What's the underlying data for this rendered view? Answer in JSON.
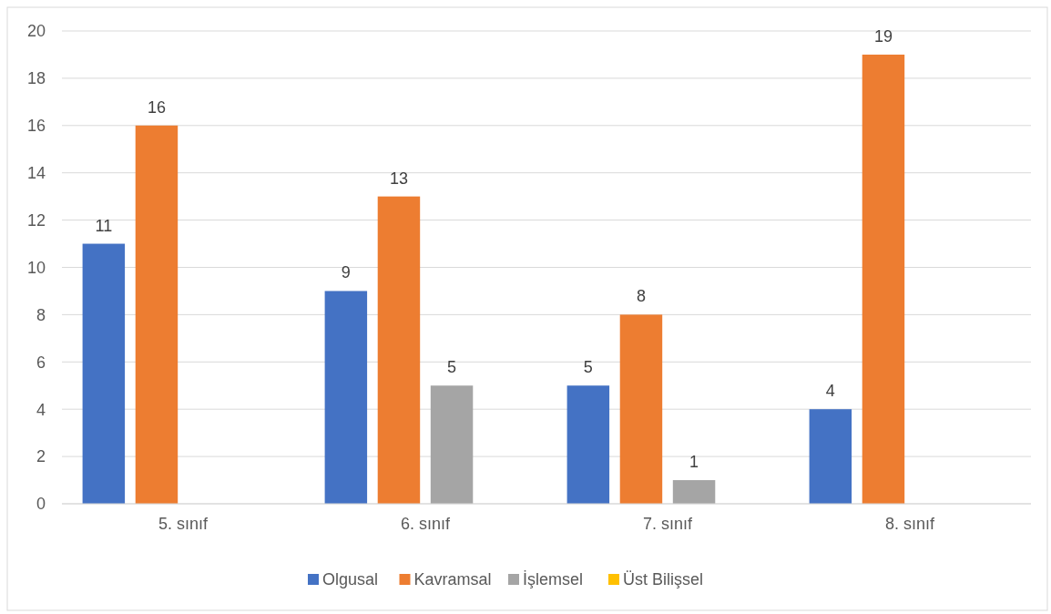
{
  "chart_data": {
    "type": "bar",
    "categories": [
      "5. sınıf",
      "6. sınıf",
      "7. sınıf",
      "8. sınıf"
    ],
    "series": [
      {
        "name": "Olgusal",
        "color": "#4472c4",
        "values": [
          11,
          9,
          5,
          4
        ],
        "value_labels": [
          "11",
          "9",
          "5",
          "4"
        ]
      },
      {
        "name": "Kavramsal",
        "color": "#ed7d31",
        "values": [
          16,
          13,
          8,
          19
        ],
        "value_labels": [
          "16",
          "13",
          "8",
          "19"
        ]
      },
      {
        "name": "İşlemsel",
        "color": "#a5a5a5",
        "values": [
          0,
          5,
          1,
          0
        ],
        "value_labels": [
          null,
          "5",
          "1",
          null
        ]
      },
      {
        "name": "Üst Bilişsel",
        "color": "#ffc000",
        "values": [
          0,
          0,
          0,
          0
        ],
        "value_labels": [
          null,
          null,
          null,
          null
        ]
      }
    ],
    "ylim": [
      0,
      20
    ],
    "yticks": [
      0,
      2,
      4,
      6,
      8,
      10,
      12,
      14,
      16,
      18,
      20
    ],
    "grid": "y",
    "legend": "bottom"
  }
}
